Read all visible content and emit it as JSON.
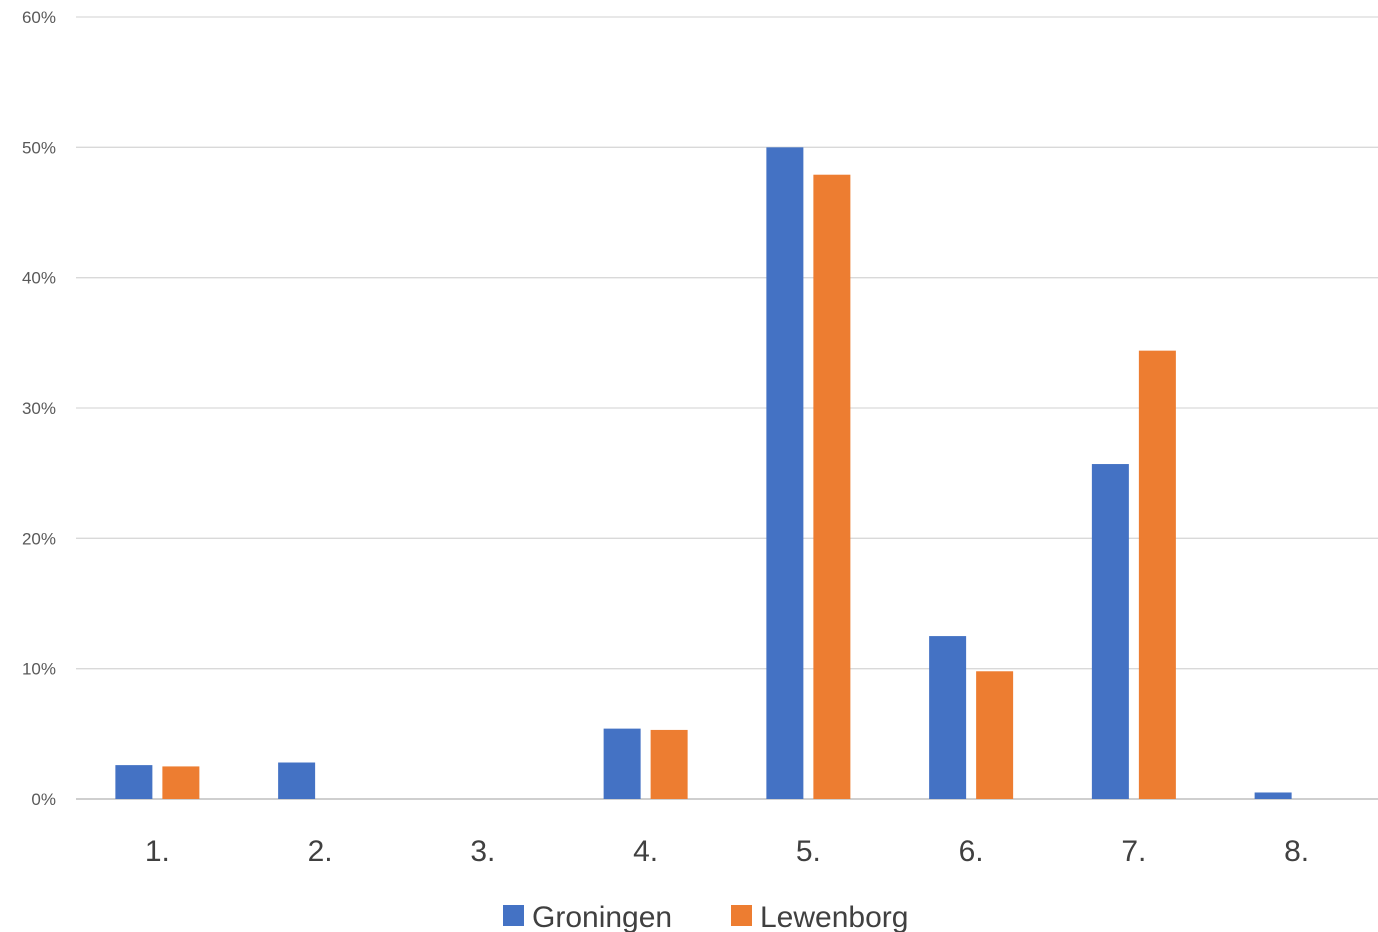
{
  "chart_data": {
    "type": "bar",
    "title": "",
    "xlabel": "",
    "ylabel": "",
    "categories": [
      "1.",
      "2.",
      "3.",
      "4.",
      "5.",
      "6.",
      "7.",
      "8."
    ],
    "series": [
      {
        "name": "Groningen",
        "color": "#4472C4",
        "values": [
          2.6,
          2.8,
          0,
          5.4,
          50.0,
          12.5,
          25.7,
          0.5
        ]
      },
      {
        "name": "Lewenborg",
        "color": "#ED7D31",
        "values": [
          2.5,
          0,
          0,
          5.3,
          47.9,
          9.8,
          34.4,
          0
        ]
      }
    ],
    "ylim": [
      0,
      60
    ],
    "yticks": [
      0,
      10,
      20,
      30,
      40,
      50,
      60
    ],
    "ytick_labels": [
      "0%",
      "10%",
      "20%",
      "30%",
      "40%",
      "50%",
      "60%"
    ],
    "grid": true,
    "legend_position": "bottom"
  }
}
